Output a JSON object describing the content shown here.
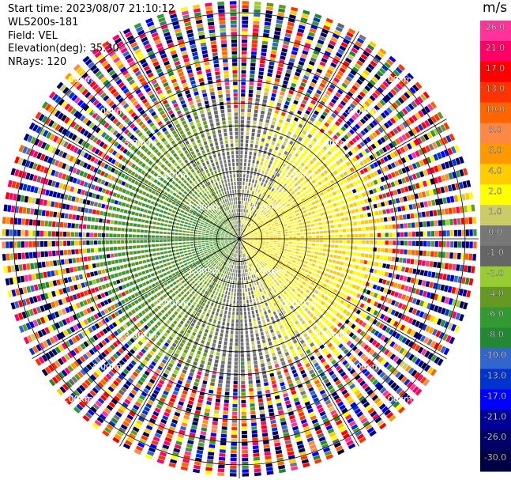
{
  "header": {
    "start_time": "Start time: 2023/08/07 21:10:12",
    "instrument": "WLS200s-181",
    "field": "Field: VEL",
    "elevation": "Elevation(deg): 35.30",
    "nrays": "NRays: 120"
  },
  "range_rings": {
    "labels": [
      "1.00km",
      "2.00km",
      "3.00km",
      "4.00km",
      "5.00km"
    ]
  },
  "colorbar": {
    "unit": "m/s",
    "ticks": [
      "26.0",
      "21.0",
      "17.0",
      "13.0",
      "10.0",
      "8.0",
      "6.0",
      "4.0",
      "2.0",
      "1.0",
      "0.0",
      "-1.0",
      "-2.0",
      "-4.0",
      "-6.0",
      "-8.0",
      "-10.0",
      "-13.0",
      "-17.0",
      "-21.0",
      "-26.0",
      "-30.0"
    ],
    "colors": [
      "#ff3399",
      "#ff0066",
      "#ff0000",
      "#ff3300",
      "#ff6600",
      "#ff8844",
      "#ff9900",
      "#ffcc00",
      "#ffff00",
      "#cccc66",
      "#777777",
      "#666666",
      "#99cc33",
      "#669922",
      "#339933",
      "#228833",
      "#3366cc",
      "#0033cc",
      "#0000ff",
      "#000099",
      "#000066",
      "#000044"
    ]
  },
  "chart_data": {
    "type": "heatmap",
    "field": "VEL",
    "units": "m/s",
    "nrays": 120,
    "elevation_deg": 35.3,
    "max_range_km": 5.3,
    "vmin": -30.0,
    "vmax": 26.0
  }
}
